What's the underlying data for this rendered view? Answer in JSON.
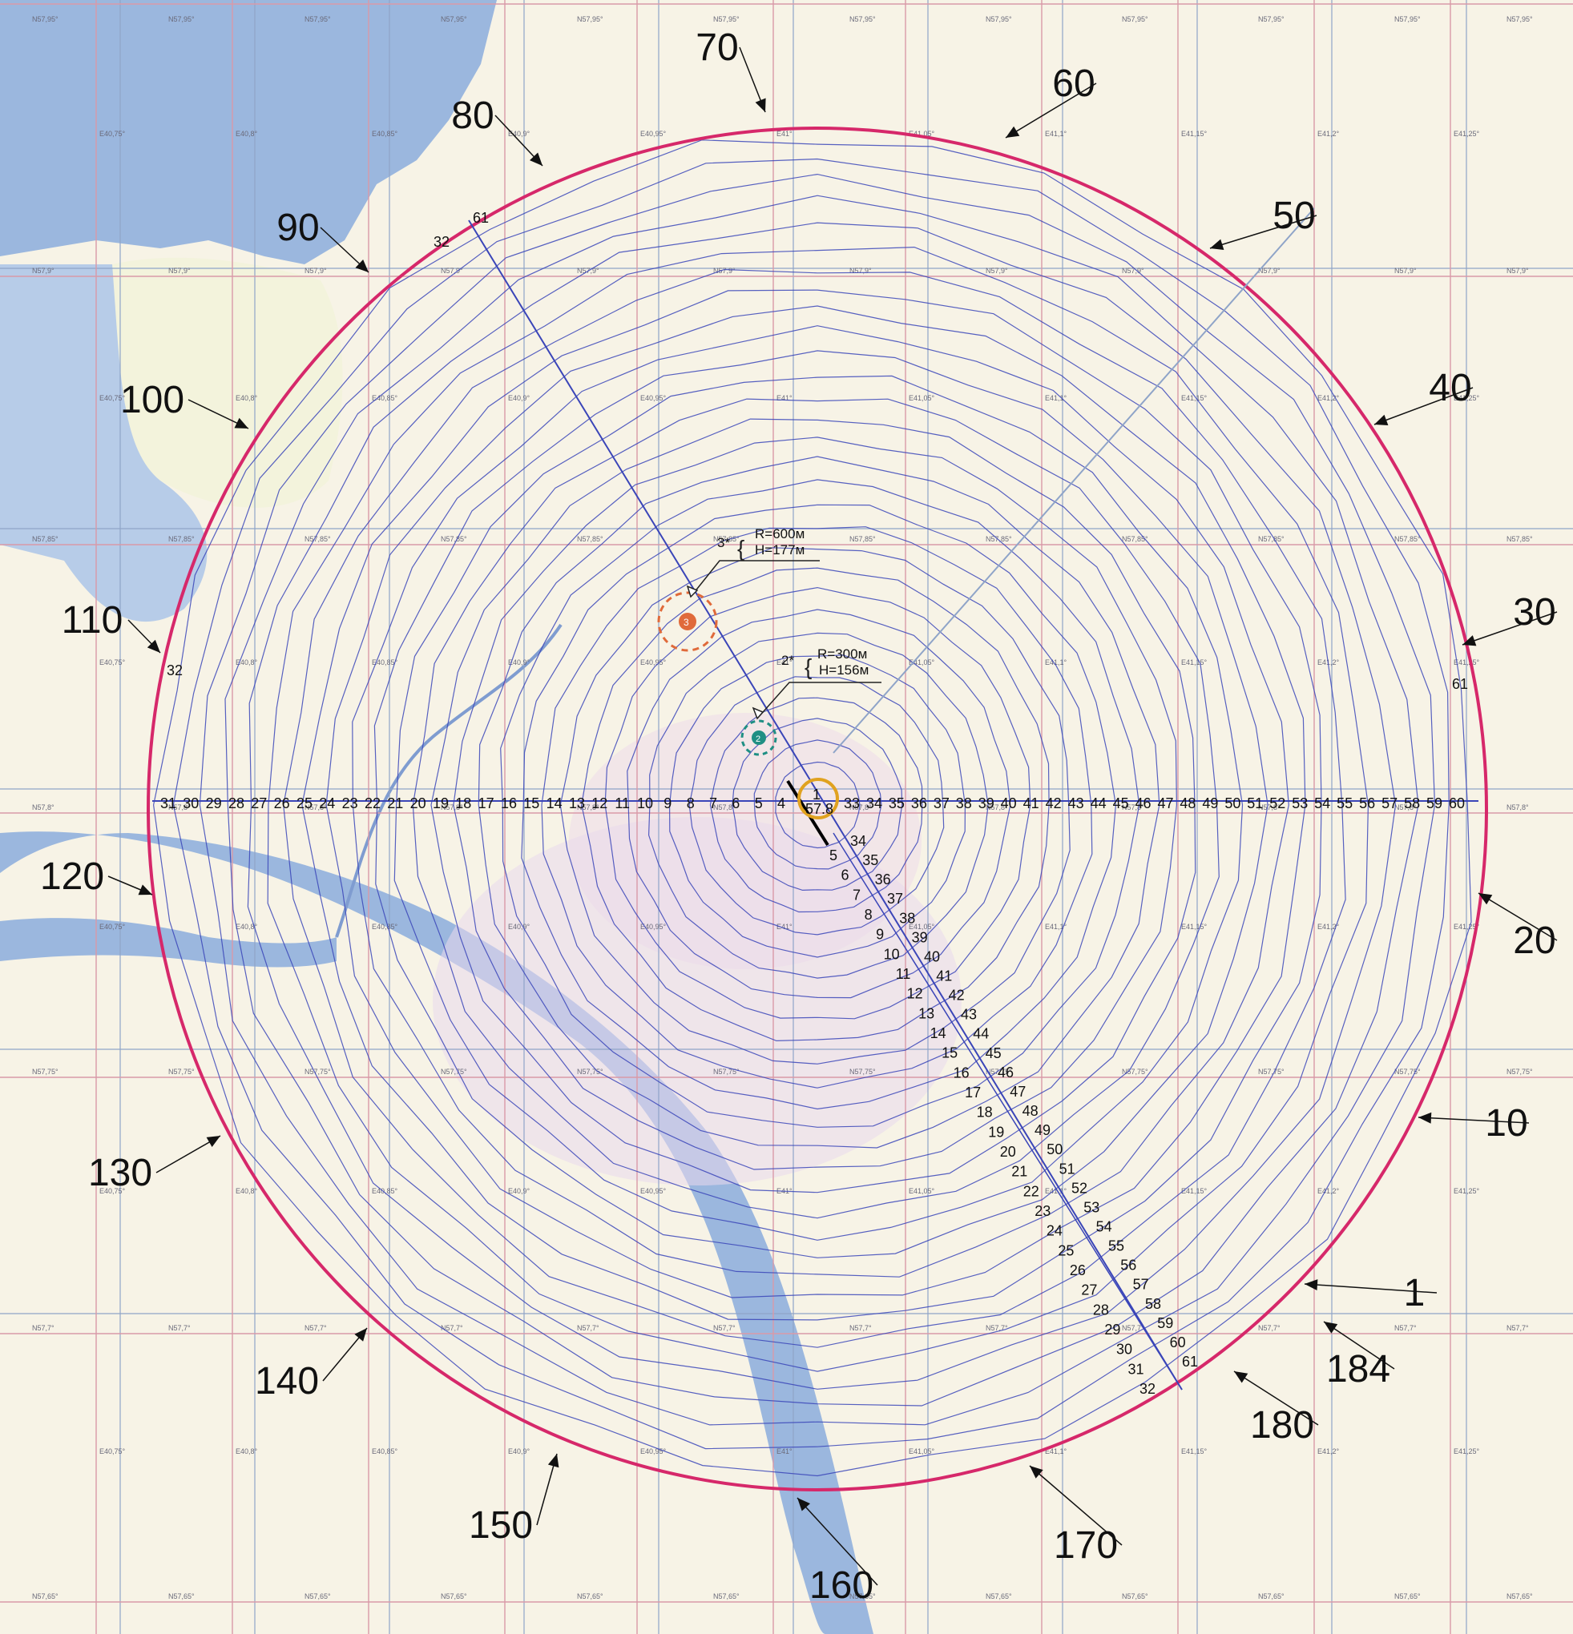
{
  "map": {
    "colors": {
      "land": "#f7f3e6",
      "water": "#9bb7de",
      "urban": "#ead8ec",
      "grid_red": "#d99aa8",
      "grid_blue": "#8fa4c8",
      "contour": "#3a45b8",
      "boundary": "#d6286a",
      "site1": "#e0a21f",
      "site2": "#1f8f84",
      "site3": "#e06a3a"
    },
    "latitude_labels": [
      "N57,95°",
      "N57,9°",
      "N57,85°",
      "N57,8°",
      "N57,75°",
      "N57,7°",
      "N57,65°"
    ],
    "longitude_labels": [
      "E40,75°",
      "E40,8°",
      "E40,85°",
      "E40,9°",
      "E40,95°",
      "E41°",
      "E41,05°",
      "E41,1°",
      "E41,15°",
      "E41,2°",
      "E41,25°"
    ],
    "direction_markers": [
      "1",
      "10",
      "20",
      "30",
      "40",
      "50",
      "60",
      "70",
      "80",
      "90",
      "100",
      "110",
      "120",
      "130",
      "140",
      "150",
      "160",
      "170",
      "180",
      "184"
    ],
    "horizontal_profile_left": [
      "31",
      "30",
      "29",
      "28",
      "27",
      "26",
      "25",
      "24",
      "23",
      "22",
      "21",
      "20",
      "19",
      "18",
      "17",
      "16",
      "15",
      "14",
      "13",
      "12",
      "11",
      "10",
      "9",
      "8",
      "7",
      "6",
      "5",
      "4"
    ],
    "horizontal_profile_right": [
      "33",
      "34",
      "35",
      "36",
      "37",
      "38",
      "39",
      "40",
      "41",
      "42",
      "43",
      "44",
      "45",
      "46",
      "47",
      "48",
      "49",
      "50",
      "51",
      "52",
      "53",
      "54",
      "55",
      "56",
      "57",
      "58",
      "59",
      "60"
    ],
    "diagonal_profile_left": [
      "5",
      "6",
      "7",
      "8",
      "9",
      "10",
      "11",
      "12",
      "13",
      "14",
      "15",
      "16",
      "17",
      "18",
      "19",
      "20",
      "21",
      "22",
      "23",
      "24",
      "25",
      "26",
      "27",
      "28",
      "29",
      "30",
      "31",
      "32"
    ],
    "diagonal_profile_right": [
      "34",
      "35",
      "36",
      "37",
      "38",
      "39",
      "40",
      "41",
      "42",
      "43",
      "44",
      "45",
      "46",
      "47",
      "48",
      "49",
      "50",
      "51",
      "52",
      "53",
      "54",
      "55",
      "56",
      "57",
      "58",
      "59",
      "60",
      "61"
    ],
    "edge_labels": {
      "nw_61": "61",
      "nw_32": "32",
      "w_32": "32",
      "e_61": "61"
    },
    "center": {
      "number": "1",
      "value": "57.8"
    },
    "obstacle_2": {
      "number": "2",
      "tag": "2*",
      "radius": "R=300м",
      "height": "H=156м"
    },
    "obstacle_3": {
      "number": "3",
      "tag": "3*",
      "radius": "R=600м",
      "height": "H=177м"
    }
  }
}
